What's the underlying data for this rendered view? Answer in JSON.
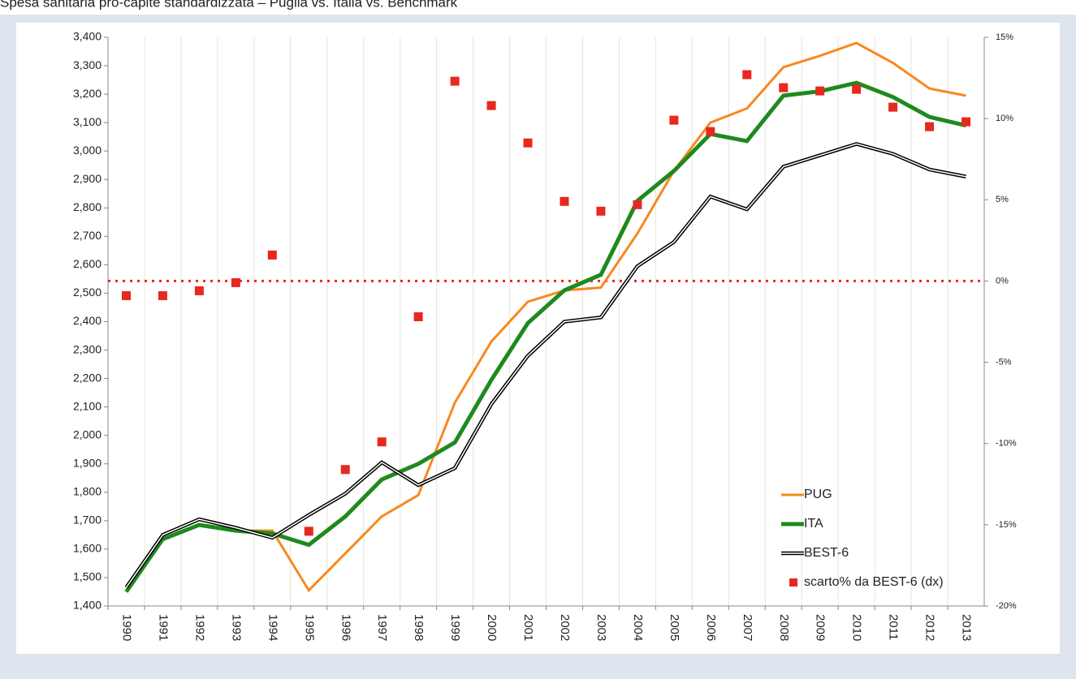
{
  "chart_data": {
    "type": "line",
    "title": "Spesa sanitaria pro-capite standardizzata – Puglia vs. Italia vs. Benchmark",
    "categories": [
      "1990",
      "1991",
      "1992",
      "1993",
      "1994",
      "1995",
      "1996",
      "1997",
      "1998",
      "1999",
      "2000",
      "2001",
      "2002",
      "2003",
      "2004",
      "2005",
      "2006",
      "2007",
      "2008",
      "2009",
      "2010",
      "2011",
      "2012",
      "2013"
    ],
    "series": [
      {
        "name": "PUG",
        "color": "#f7891f",
        "values": [
          1450,
          1635,
          1685,
          1665,
          1665,
          1455,
          1585,
          1715,
          1790,
          2115,
          2330,
          2470,
          2510,
          2520,
          2710,
          2930,
          3100,
          3150,
          3295,
          3335,
          3380,
          3310,
          3220,
          3195
        ]
      },
      {
        "name": "ITA",
        "color": "#1e8a1e",
        "values": [
          1450,
          1635,
          1685,
          1665,
          1655,
          1615,
          1715,
          1845,
          1900,
          1975,
          2195,
          2395,
          2510,
          2565,
          2825,
          2930,
          3060,
          3035,
          3195,
          3210,
          3240,
          3190,
          3120,
          3090
        ]
      },
      {
        "name": "BEST-6",
        "color": "#000000",
        "style": "double",
        "values": [
          1465,
          1650,
          1705,
          1675,
          1640,
          1720,
          1795,
          1905,
          1825,
          1885,
          2110,
          2280,
          2400,
          2415,
          2595,
          2680,
          2840,
          2795,
          2945,
          2985,
          3025,
          2990,
          2935,
          2910
        ]
      },
      {
        "name": "scarto% da BEST-6 (dx)",
        "color": "#e8281e",
        "type": "scatter",
        "marker": "square",
        "axis": "y2",
        "values": [
          -0.9,
          -0.9,
          -0.6,
          -0.1,
          1.6,
          -15.4,
          -11.6,
          -9.9,
          -2.2,
          12.3,
          10.8,
          8.5,
          4.9,
          4.3,
          4.7,
          9.9,
          9.2,
          12.7,
          11.9,
          11.7,
          11.8,
          10.7,
          9.5,
          9.8
        ]
      }
    ],
    "ylim": [
      1400,
      3400
    ],
    "yticks": [
      {
        "value": 1400,
        "label": "1,400"
      },
      {
        "value": 1500,
        "label": "1,500"
      },
      {
        "value": 1600,
        "label": "1,600"
      },
      {
        "value": 1700,
        "label": "1,700"
      },
      {
        "value": 1800,
        "label": "1,800"
      },
      {
        "value": 1900,
        "label": "1,900"
      },
      {
        "value": 2000,
        "label": "2,000"
      },
      {
        "value": 2100,
        "label": "2,100"
      },
      {
        "value": 2200,
        "label": "2,200"
      },
      {
        "value": 2300,
        "label": "2,300"
      },
      {
        "value": 2400,
        "label": "2,400"
      },
      {
        "value": 2500,
        "label": "2,500"
      },
      {
        "value": 2600,
        "label": "2,600"
      },
      {
        "value": 2700,
        "label": "2,700"
      },
      {
        "value": 2800,
        "label": "2,800"
      },
      {
        "value": 2900,
        "label": "2,900"
      },
      {
        "value": 3000,
        "label": "3,000"
      },
      {
        "value": 3100,
        "label": "3,100"
      },
      {
        "value": 3200,
        "label": "3,200"
      },
      {
        "value": 3300,
        "label": "3,300"
      },
      {
        "value": 3400,
        "label": "3,400"
      }
    ],
    "y2lim": [
      -20,
      15
    ],
    "y2ticks": [
      {
        "value": -20,
        "label": "-20%"
      },
      {
        "value": -15,
        "label": "-15%"
      },
      {
        "value": -10,
        "label": "-10%"
      },
      {
        "value": -5,
        "label": "-5%"
      },
      {
        "value": 0,
        "label": "0%"
      },
      {
        "value": 5,
        "label": "5%"
      },
      {
        "value": 10,
        "label": "10%"
      },
      {
        "value": 15,
        "label": "15%"
      }
    ],
    "y2_reference": 0,
    "grid": "x",
    "legend": "lower right"
  }
}
